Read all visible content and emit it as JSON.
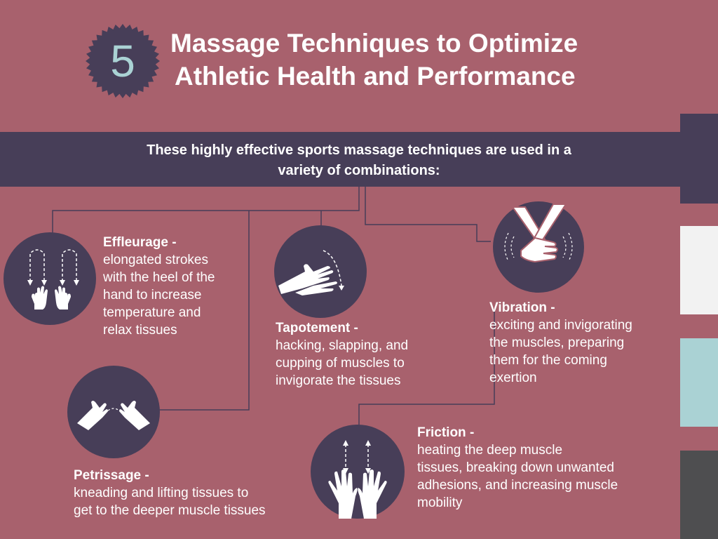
{
  "colors": {
    "background": "#a8616d",
    "dark": "#473e58",
    "accent": "#aad2d4",
    "swatches": [
      "#473e58",
      "#f2f2f2",
      "#aad2d4",
      "#4e4e50"
    ]
  },
  "badge": {
    "number": "5",
    "icon": "starburst-badge-icon"
  },
  "title": {
    "line1": "Massage Techniques to Optimize",
    "line2": "Athletic Health and Performance"
  },
  "banner": {
    "line1": "These highly effective sports massage techniques are used in a",
    "line2": "variety of combinations:"
  },
  "techniques": [
    {
      "name": "Effleurage -",
      "desc": [
        "elongated strokes",
        "with the heel of the",
        "hand to increase",
        "temperature and",
        "relax tissues"
      ],
      "icon": "effleurage-hands-icon"
    },
    {
      "name": "Petrissage -",
      "desc": [
        "kneading and lifting tissues to",
        "get to the deeper muscle tissues"
      ],
      "icon": "petrissage-hands-icon"
    },
    {
      "name": "Tapotement -",
      "desc": [
        "hacking, slapping, and",
        "cupping of muscles to",
        "invigorate the tissues"
      ],
      "icon": "tapotement-hands-icon"
    },
    {
      "name": "Vibration -",
      "desc": [
        "exciting and invigorating",
        "the muscles, preparing",
        "them for the coming",
        "exertion"
      ],
      "icon": "vibration-hands-icon"
    },
    {
      "name": "Friction -",
      "desc": [
        "heating the deep muscle",
        "tissues, breaking down unwanted",
        "adhesions, and increasing muscle",
        "mobility"
      ],
      "icon": "friction-hands-icon"
    }
  ]
}
